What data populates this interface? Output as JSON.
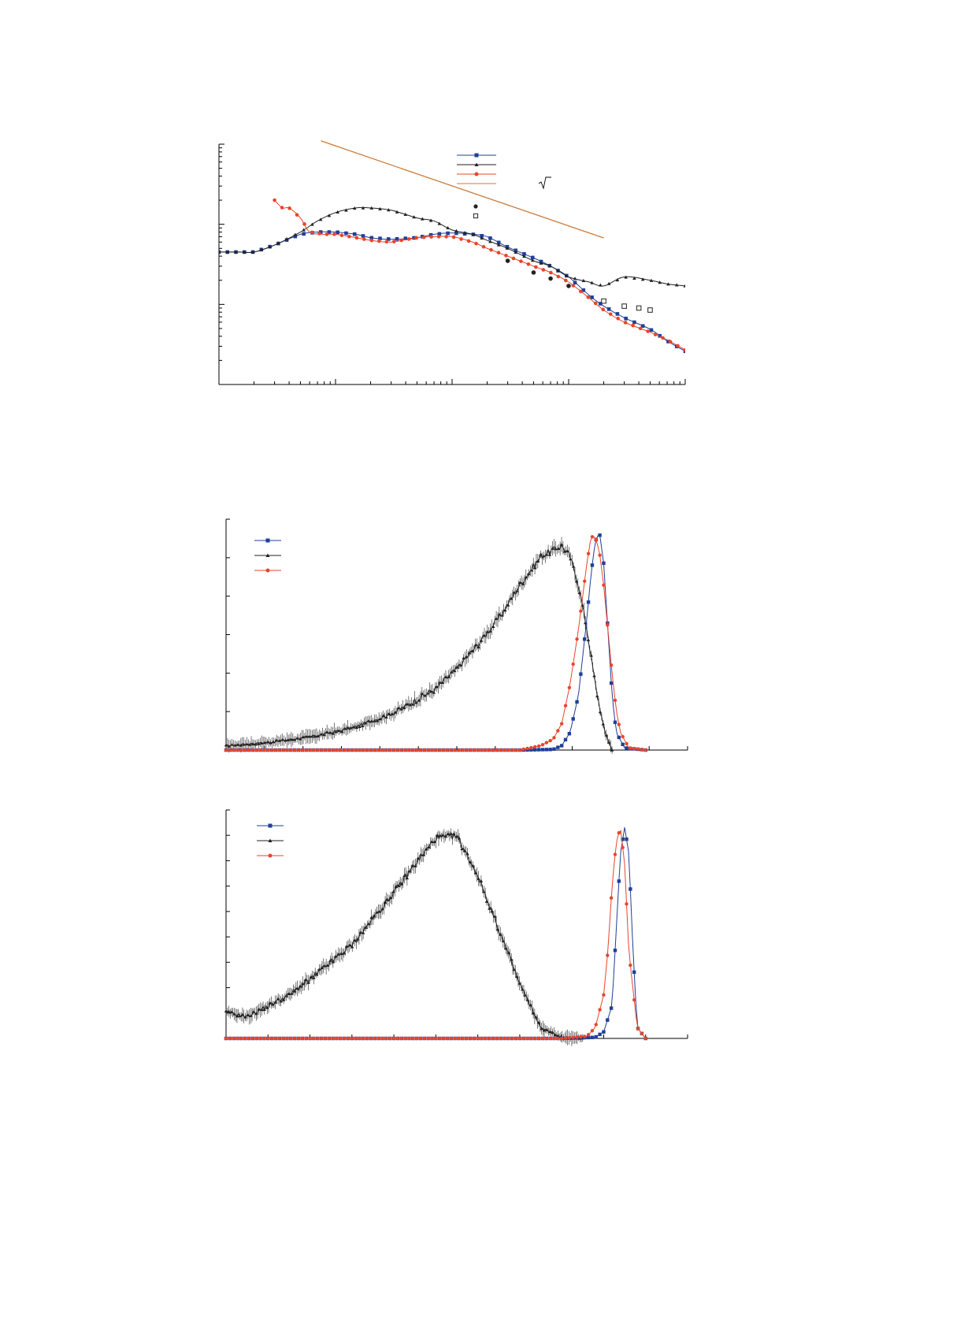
{
  "colors": {
    "blue": "#1f3f99",
    "black": "#222222",
    "red": "#e8452c",
    "orange": "#cc7a3a"
  },
  "icons": {
    "legend_extra_1": "filled-circle-marker",
    "legend_extra_2": "open-square-marker",
    "sqrt_symbol": "square-root-sign"
  },
  "chart_data": [
    {
      "type": "line",
      "xscale": "log",
      "yscale": "log",
      "xlim": [
        0.1,
        1000
      ],
      "ylim": [
        0.001,
        1
      ],
      "title": "",
      "xlabel": "",
      "ylabel": "",
      "grid": false,
      "legend_position": "top-right",
      "series": [
        {
          "marker": "square",
          "color": "#1f3f99",
          "x": [
            0.1,
            0.15,
            0.2,
            0.3,
            0.5,
            0.7,
            1,
            1.5,
            2,
            3,
            5,
            7,
            10,
            15,
            20,
            30,
            50,
            70,
            100,
            150,
            200,
            300,
            500,
            700,
            1000
          ],
          "y": [
            0.045,
            0.045,
            0.045,
            0.055,
            0.075,
            0.08,
            0.08,
            0.075,
            0.068,
            0.065,
            0.068,
            0.075,
            0.078,
            0.075,
            0.07,
            0.052,
            0.038,
            0.03,
            0.022,
            0.013,
            0.0095,
            0.0068,
            0.0049,
            0.0035,
            0.0026
          ]
        },
        {
          "marker": "triangle",
          "color": "#222222",
          "x": [
            0.1,
            0.15,
            0.2,
            0.3,
            0.5,
            0.7,
            1,
            1.5,
            2,
            3,
            5,
            7,
            10,
            15,
            20,
            30,
            50,
            70,
            100,
            150,
            200,
            300,
            500,
            700,
            1000
          ],
          "y": [
            0.045,
            0.045,
            0.045,
            0.055,
            0.08,
            0.11,
            0.14,
            0.16,
            0.16,
            0.15,
            0.12,
            0.11,
            0.085,
            0.075,
            0.063,
            0.05,
            0.035,
            0.03,
            0.022,
            0.019,
            0.017,
            0.022,
            0.02,
            0.018,
            0.017
          ]
        },
        {
          "marker": "circle",
          "color": "#e8452c",
          "x": [
            0.3,
            0.35,
            0.4,
            0.5,
            0.6,
            0.8,
            1,
            1.5,
            2,
            3,
            5,
            7,
            10,
            15,
            20,
            30,
            50,
            70,
            100,
            150,
            200,
            300,
            500,
            700,
            1000
          ],
          "y": [
            0.2,
            0.16,
            0.16,
            0.12,
            0.08,
            0.075,
            0.075,
            0.068,
            0.063,
            0.06,
            0.068,
            0.07,
            0.07,
            0.06,
            0.05,
            0.04,
            0.03,
            0.025,
            0.019,
            0.012,
            0.0085,
            0.006,
            0.0045,
            0.0036,
            0.0027
          ]
        },
        {
          "marker": "none",
          "color": "#cc7a3a",
          "x": [
            0.75,
            200
          ],
          "y": [
            1.1,
            0.0675
          ]
        }
      ],
      "extra_points": [
        {
          "marker": "filled-circle",
          "color": "#222222",
          "x": [
            30,
            50,
            70,
            100
          ],
          "y": [
            0.035,
            0.025,
            0.021,
            0.017
          ]
        },
        {
          "marker": "open-square",
          "color": "#222222",
          "x": [
            200,
            300,
            400,
            500
          ],
          "y": [
            0.011,
            0.0095,
            0.009,
            0.0085
          ]
        }
      ]
    },
    {
      "type": "line",
      "xlim": [
        0,
        1.1
      ],
      "ylim": [
        0,
        1.05
      ],
      "title": "",
      "xlabel": "",
      "ylabel": "",
      "grid": false,
      "legend_position": "top-left",
      "series": [
        {
          "marker": "square",
          "color": "#1f3f99",
          "x": [
            0,
            0.5,
            0.7,
            0.78,
            0.8,
            0.82,
            0.84,
            0.86,
            0.87,
            0.88,
            0.89,
            0.9,
            0.91,
            0.92,
            0.93,
            0.95,
            1.0
          ],
          "y": [
            0,
            0,
            0,
            0.003,
            0.02,
            0.08,
            0.25,
            0.6,
            0.8,
            0.95,
            0.99,
            0.85,
            0.55,
            0.25,
            0.08,
            0.01,
            0
          ]
        },
        {
          "marker": "triangle",
          "color": "#222222",
          "x": [
            0,
            0.1,
            0.2,
            0.3,
            0.4,
            0.5,
            0.55,
            0.6,
            0.65,
            0.7,
            0.75,
            0.8,
            0.82,
            0.84,
            0.86,
            0.88,
            0.9,
            0.92
          ],
          "y": [
            0.02,
            0.035,
            0.06,
            0.1,
            0.17,
            0.28,
            0.37,
            0.48,
            0.6,
            0.75,
            0.88,
            0.93,
            0.88,
            0.75,
            0.55,
            0.3,
            0.1,
            0
          ]
        },
        {
          "marker": "circle",
          "color": "#e8452c",
          "x": [
            0,
            0.5,
            0.7,
            0.75,
            0.78,
            0.8,
            0.82,
            0.84,
            0.86,
            0.87,
            0.88,
            0.89,
            0.9,
            0.91,
            0.92,
            0.93,
            0.94,
            0.96,
            1.0
          ],
          "y": [
            0,
            0,
            0,
            0.02,
            0.05,
            0.12,
            0.3,
            0.55,
            0.85,
            0.97,
            0.97,
            0.9,
            0.75,
            0.55,
            0.35,
            0.18,
            0.08,
            0.01,
            0
          ]
        }
      ]
    },
    {
      "type": "line",
      "xlim": [
        0,
        1.1
      ],
      "ylim": [
        0,
        1.05
      ],
      "title": "",
      "xlabel": "",
      "ylabel": "",
      "grid": false,
      "legend_position": "top-left",
      "series": [
        {
          "marker": "square",
          "color": "#1f3f99",
          "x": [
            0,
            0.5,
            0.8,
            0.88,
            0.9,
            0.92,
            0.93,
            0.94,
            0.95,
            0.96,
            0.97,
            0.98,
            1.0
          ],
          "y": [
            0,
            0,
            0,
            0.005,
            0.03,
            0.15,
            0.5,
            0.85,
            0.97,
            0.85,
            0.4,
            0.05,
            0
          ]
        },
        {
          "marker": "triangle",
          "color": "#222222",
          "x": [
            0,
            0.05,
            0.1,
            0.15,
            0.2,
            0.3,
            0.4,
            0.45,
            0.5,
            0.55,
            0.6,
            0.65,
            0.7,
            0.75,
            0.8,
            0.85
          ],
          "y": [
            0.12,
            0.1,
            0.15,
            0.2,
            0.27,
            0.43,
            0.67,
            0.8,
            0.92,
            0.93,
            0.75,
            0.5,
            0.25,
            0.05,
            0.005,
            0
          ]
        },
        {
          "marker": "circle",
          "color": "#e8452c",
          "x": [
            0,
            0.5,
            0.8,
            0.86,
            0.88,
            0.9,
            0.91,
            0.92,
            0.93,
            0.94,
            0.95,
            0.96,
            0.98,
            1.0
          ],
          "y": [
            0,
            0,
            0,
            0.01,
            0.05,
            0.2,
            0.4,
            0.7,
            0.9,
            0.97,
            0.8,
            0.4,
            0.05,
            0
          ]
        }
      ]
    }
  ]
}
